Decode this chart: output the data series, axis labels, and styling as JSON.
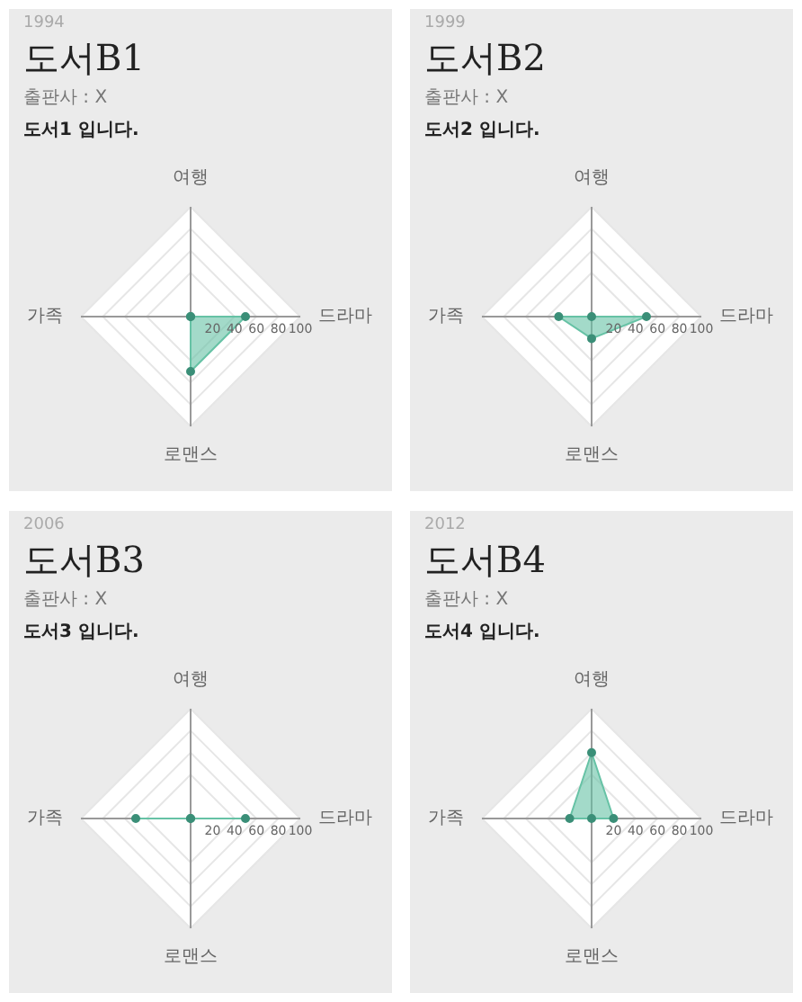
{
  "chart_data": [
    {
      "type": "radar",
      "title": "도서B1",
      "subtitle": "출판사 : X",
      "annotations": [
        "1994",
        "도서1 입니다."
      ],
      "categories": [
        "여행",
        "드라마",
        "로맨스",
        "가족"
      ],
      "series": [
        {
          "color": "#66c2a5",
          "values": [
            0,
            50,
            50,
            0
          ]
        }
      ],
      "ylim": [
        0,
        100
      ],
      "yticks": [
        20,
        40,
        60,
        80,
        100
      ],
      "grid": true,
      "legend": false,
      "marker": "circle"
    },
    {
      "type": "radar",
      "title": "도서B2",
      "subtitle": "출판사 : X",
      "annotations": [
        "1999",
        "도서2 입니다."
      ],
      "categories": [
        "여행",
        "드라마",
        "로맨스",
        "가족"
      ],
      "series": [
        {
          "color": "#66c2a5",
          "values": [
            0,
            50,
            20,
            30
          ]
        }
      ],
      "ylim": [
        0,
        100
      ],
      "yticks": [
        20,
        40,
        60,
        80,
        100
      ],
      "grid": true,
      "legend": false,
      "marker": "circle"
    },
    {
      "type": "radar",
      "title": "도서B3",
      "subtitle": "출판사 : X",
      "annotations": [
        "2006",
        "도서3 입니다."
      ],
      "categories": [
        "여행",
        "드라마",
        "로맨스",
        "가족"
      ],
      "series": [
        {
          "color": "#66c2a5",
          "values": [
            0,
            50,
            0,
            50
          ]
        }
      ],
      "ylim": [
        0,
        100
      ],
      "yticks": [
        20,
        40,
        60,
        80,
        100
      ],
      "grid": true,
      "legend": false,
      "marker": "circle"
    },
    {
      "type": "radar",
      "title": "도서B4",
      "subtitle": "출판사 : X",
      "annotations": [
        "2012",
        "도서4 입니다."
      ],
      "categories": [
        "여행",
        "드라마",
        "로맨스",
        "가족"
      ],
      "series": [
        {
          "color": "#66c2a5",
          "values": [
            60,
            20,
            0,
            20
          ]
        }
      ],
      "ylim": [
        0,
        100
      ],
      "yticks": [
        20,
        40,
        60,
        80,
        100
      ],
      "grid": true,
      "legend": false,
      "marker": "circle"
    }
  ]
}
